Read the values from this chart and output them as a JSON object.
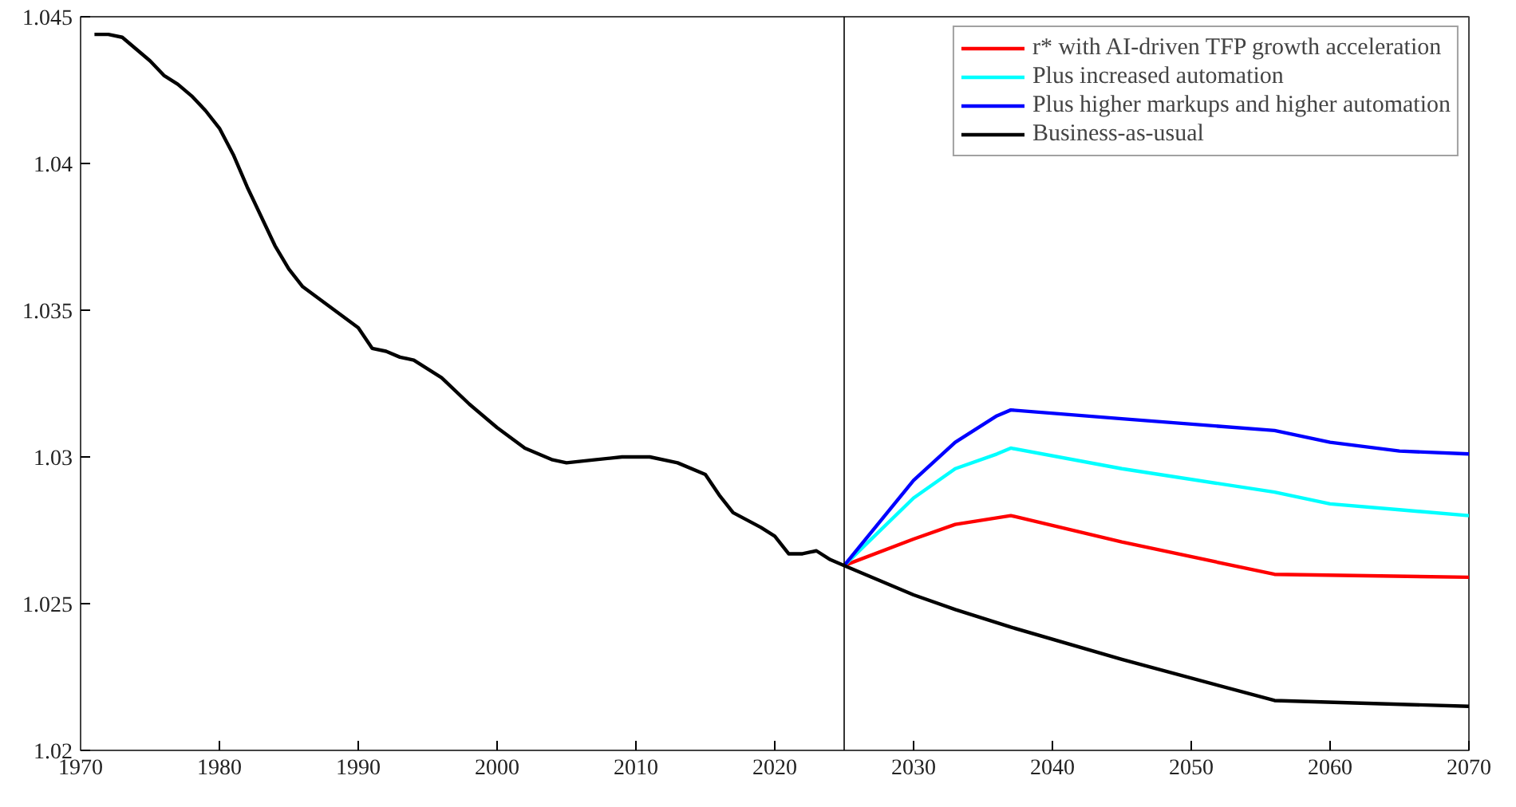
{
  "chart_data": {
    "type": "line",
    "xlim": [
      1970,
      2070
    ],
    "ylim": [
      1.02,
      1.045
    ],
    "xticks": [
      1970,
      1980,
      1990,
      2000,
      2010,
      2020,
      2030,
      2040,
      2050,
      2060,
      2070
    ],
    "yticks": [
      1.02,
      1.025,
      1.03,
      1.035,
      1.04,
      1.045
    ],
    "grid": false,
    "legend": "top right",
    "line_style": "solid",
    "marker": "none",
    "ref_lines": [
      {
        "axis": "x",
        "value": 2025,
        "color": "#000000"
      }
    ],
    "series": [
      {
        "name": "r* with AI-driven TFP growth acceleration",
        "color": "#ff0000",
        "x": [
          2025,
          2030,
          2033,
          2037,
          2045,
          2056,
          2070
        ],
        "values": [
          1.0263,
          1.0272,
          1.0277,
          1.028,
          1.0271,
          1.026,
          1.0259
        ]
      },
      {
        "name": "Plus increased automation",
        "color": "#00ffff",
        "x": [
          2025,
          2030,
          2033,
          2036,
          2037,
          2045,
          2056,
          2060,
          2065,
          2070
        ],
        "values": [
          1.0263,
          1.0286,
          1.0296,
          1.0301,
          1.0303,
          1.0296,
          1.0288,
          1.0284,
          1.0282,
          1.028
        ]
      },
      {
        "name": "Plus higher markups and higher automation",
        "color": "#0000ff",
        "x": [
          2025,
          2030,
          2033,
          2036,
          2037,
          2045,
          2056,
          2060,
          2065,
          2070
        ],
        "values": [
          1.0263,
          1.0292,
          1.0305,
          1.0314,
          1.0316,
          1.0313,
          1.0309,
          1.0305,
          1.0302,
          1.0301
        ]
      },
      {
        "name": "Business-as-usual",
        "color": "#000000",
        "x": [
          1971,
          1972,
          1973,
          1974,
          1975,
          1976,
          1977,
          1978,
          1979,
          1980,
          1981,
          1982,
          1983,
          1984,
          1985,
          1986,
          1988,
          1990,
          1991,
          1992,
          1993,
          1994,
          1995,
          1996,
          1998,
          2000,
          2002,
          2004,
          2005,
          2007,
          2009,
          2011,
          2013,
          2015,
          2016,
          2017,
          2019,
          2020,
          2021,
          2022,
          2023,
          2024,
          2025,
          2030,
          2033,
          2037,
          2045,
          2056,
          2070
        ],
        "values": [
          1.0444,
          1.0444,
          1.0443,
          1.0439,
          1.0435,
          1.043,
          1.0427,
          1.0423,
          1.0418,
          1.0412,
          1.0403,
          1.0392,
          1.0382,
          1.0372,
          1.0364,
          1.0358,
          1.0351,
          1.0344,
          1.0337,
          1.0336,
          1.0334,
          1.0333,
          1.033,
          1.0327,
          1.0318,
          1.031,
          1.0303,
          1.0299,
          1.0298,
          1.0299,
          1.03,
          1.03,
          1.0298,
          1.0294,
          1.0287,
          1.0281,
          1.0276,
          1.0273,
          1.0267,
          1.0267,
          1.0268,
          1.0265,
          1.0263,
          1.0253,
          1.0248,
          1.0242,
          1.0231,
          1.0217,
          1.0215
        ]
      }
    ]
  }
}
